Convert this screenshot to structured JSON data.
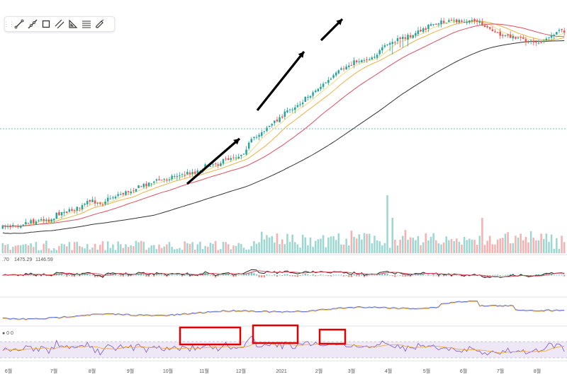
{
  "toolbar": {
    "tools": [
      {
        "name": "trend-line-icon"
      },
      {
        "name": "ray-icon"
      },
      {
        "name": "rectangle-icon"
      },
      {
        "name": "parallel-channel-icon"
      },
      {
        "name": "triangle-ruler-icon"
      },
      {
        "name": "fibonacci-icon"
      },
      {
        "name": "brush-icon"
      }
    ]
  },
  "macd_legend": {
    "v1": ".70",
    "v2": "1475.29",
    "v3": "1146.59"
  },
  "rsi_legend": {
    "v1": "0",
    "v2": "0"
  },
  "colors": {
    "up": "#26a69a",
    "down": "#ef5350",
    "ma_fast": "#f5d76e",
    "ma_mid": "#f0a830",
    "ma_slow": "#e04e5e",
    "ma_long": "#333333",
    "rsi_band": "#ede7f6",
    "rsi_line": "#7e57c2",
    "annotation_box": "#e00000",
    "arrow": "#000000"
  },
  "chart_data": {
    "type": "candlestick",
    "x_axis_labels": [
      "6월",
      "7월",
      "8월",
      "9월",
      "10월",
      "11월",
      "12월",
      "2021",
      "2월",
      "3월",
      "4월",
      "5월",
      "6월",
      "7월",
      "8월"
    ],
    "close_trend": [
      0.54,
      0.56,
      0.57,
      0.56,
      0.58,
      0.58,
      0.57,
      0.58,
      0.59,
      0.6,
      0.6,
      0.63,
      0.61,
      0.62,
      0.62,
      0.63,
      0.64,
      0.64,
      0.63,
      0.64,
      0.66,
      0.7,
      0.72,
      0.73,
      0.76,
      0.74,
      0.75,
      0.77,
      0.78,
      0.79,
      0.8,
      0.82,
      0.85,
      0.88,
      0.9,
      0.91,
      0.9,
      0.9,
      0.89,
      0.88,
      0.92,
      0.95,
      0.97,
      0.99,
      1.02,
      1.04,
      1.05,
      1.06,
      1.08,
      1.1,
      1.13,
      1.16,
      1.18,
      1.2,
      1.22,
      1.25,
      1.27,
      1.3,
      1.32,
      1.34,
      1.36,
      1.38,
      1.36,
      1.4,
      1.42,
      1.45,
      1.48,
      1.5,
      1.52,
      1.5,
      1.53,
      1.55,
      1.58,
      1.6,
      1.62,
      1.61,
      1.65,
      1.7,
      1.75,
      1.8,
      1.85,
      1.88,
      1.9,
      1.92,
      1.9,
      1.95,
      2.0,
      2.05,
      2.1,
      2.15,
      2.18,
      2.2,
      2.22,
      2.3,
      2.4,
      2.6,
      2.8,
      3.0,
      3.1,
      3.2,
      3.4,
      3.6,
      3.7,
      3.9,
      4.0,
      4.1,
      4.3,
      4.5,
      4.7,
      4.9,
      5.1,
      5.3,
      5.5,
      5.7,
      5.9,
      6.1,
      6.3,
      6.5,
      6.8,
      7.1,
      7.4,
      7.7,
      8.0,
      8.4,
      8.7,
      9.0,
      9.4,
      9.7,
      10.0,
      10.5,
      11.0,
      11.5,
      12.0,
      12.4,
      12.8,
      13.2,
      13.6,
      14.0,
      14.2,
      14.5,
      14.6,
      14.8,
      15.0,
      15.2,
      15.5,
      16.0,
      16.5,
      17.2,
      18.0,
      18.8,
      19.5,
      20.2,
      21.0,
      21.5,
      22.0,
      22.4,
      22.6,
      22.9,
      23.0,
      23.4,
      24.0,
      24.5,
      25.3,
      26.0,
      26.8,
      27.5,
      28.2,
      29.0,
      29.5,
      30.0,
      30.3,
      30.4,
      30.6,
      30.7,
      30.8,
      31.0,
      31.2,
      31.5,
      31.8,
      31.9,
      32.0,
      32.1,
      32.0,
      31.8,
      31.5,
      31.0,
      30.2,
      29.5,
      28.5,
      27.5,
      26.5,
      25.5,
      25.0,
      24.3,
      23.8,
      23.5,
      23.2,
      23.0,
      22.8,
      22.6,
      22.3,
      22.0,
      21.8,
      21.5,
      21.3,
      21.0,
      20.9,
      20.8,
      20.6,
      20.7,
      20.9,
      21.3,
      22.0,
      22.9,
      23.8,
      24.4,
      25.0,
      25.4,
      25.7,
      26.0
    ]
  }
}
